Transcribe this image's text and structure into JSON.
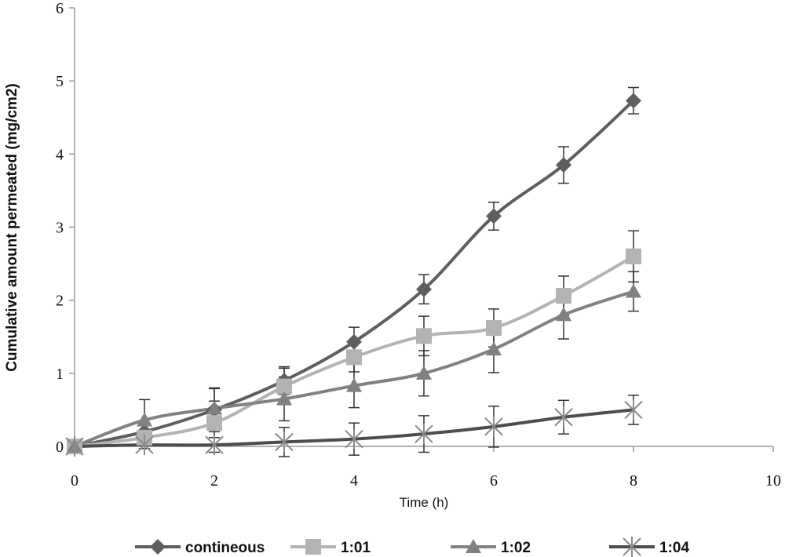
{
  "chart_data": {
    "type": "line",
    "title": "",
    "xlabel": "Time (h)",
    "ylabel": "Cumulative amount permeated (mg/cm2)",
    "xlim": [
      0,
      10
    ],
    "ylim": [
      0,
      6
    ],
    "xticks": [
      0,
      2,
      4,
      6,
      8,
      10
    ],
    "yticks": [
      0,
      1,
      2,
      3,
      4,
      5,
      6
    ],
    "grid": false,
    "legend_position": "bottom",
    "x": [
      0,
      1,
      2,
      3,
      4,
      5,
      6,
      7,
      8
    ],
    "series": [
      {
        "name": "contineous",
        "marker": "diamond",
        "color": "#5e5e5e",
        "marker_color": "#5e5e5e",
        "values": [
          0,
          0.2,
          0.5,
          0.9,
          1.43,
          2.15,
          3.15,
          3.85,
          4.73
        ],
        "error": [
          0,
          0.1,
          0.3,
          0.19,
          0.2,
          0.2,
          0.19,
          0.25,
          0.18
        ]
      },
      {
        "name": "1:01",
        "marker": "square",
        "color": "#b3b3b3",
        "marker_color": "#b3b3b3",
        "values": [
          0,
          0.12,
          0.32,
          0.82,
          1.22,
          1.51,
          1.62,
          2.06,
          2.6
        ],
        "error": [
          0,
          0.1,
          0.3,
          0.25,
          0.2,
          0.27,
          0.26,
          0.27,
          0.35
        ]
      },
      {
        "name": "1:02",
        "marker": "triangle",
        "color": "#818181",
        "marker_color": "#818181",
        "values": [
          0,
          0.36,
          0.52,
          0.65,
          0.83,
          1.0,
          1.33,
          1.8,
          2.12
        ],
        "error": [
          0,
          0.28,
          0.27,
          0.3,
          0.3,
          0.31,
          0.32,
          0.33,
          0.27
        ]
      },
      {
        "name": "1:04",
        "marker": "x",
        "color": "#4d4d4d",
        "marker_color": "#8a8a8a",
        "values": [
          0,
          0.02,
          0.02,
          0.06,
          0.1,
          0.17,
          0.27,
          0.4,
          0.5
        ],
        "error": [
          0,
          0.05,
          0.1,
          0.2,
          0.22,
          0.25,
          0.28,
          0.23,
          0.2
        ]
      }
    ]
  }
}
